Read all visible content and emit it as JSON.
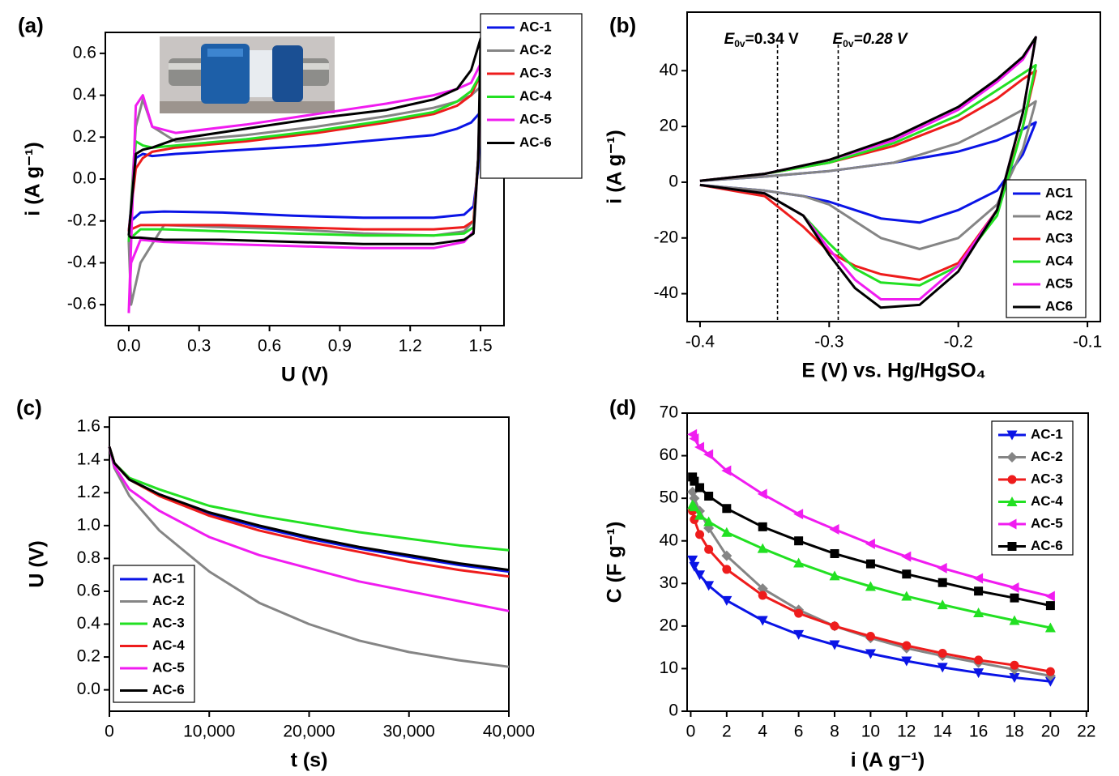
{
  "chart_data": [
    {
      "type": "line",
      "label": "(a)",
      "xlabel": "U (V)",
      "ylabel": "i (A g⁻¹)",
      "xlim": [
        -0.1,
        1.6
      ],
      "ylim": [
        -0.7,
        0.7
      ],
      "xticks": [
        {
          "value": 0,
          "label": "0.0"
        },
        0.3,
        0.6,
        0.9,
        1.2,
        1.5
      ],
      "yticks": [
        -0.6,
        -0.4,
        -0.2,
        {
          "value": 0,
          "label": "0.0"
        },
        0.2,
        0.4,
        0.6
      ],
      "x": [
        0,
        0.03,
        0.06,
        0.1,
        0.2,
        0.5,
        0.8,
        1.1,
        1.3,
        1.4,
        1.46,
        1.5,
        1.49,
        1.47,
        1.43,
        1.3,
        1.0,
        0.7,
        0.4,
        0.15,
        0.05,
        0.01,
        0
      ],
      "series": [
        {
          "name": "AC-1",
          "color": "#0a14e6",
          "values": [
            -0.25,
            0.1,
            0.12,
            0.11,
            0.12,
            0.14,
            0.16,
            0.19,
            0.21,
            0.24,
            0.27,
            0.32,
            0.05,
            -0.13,
            -0.17,
            -0.185,
            -0.185,
            -0.175,
            -0.16,
            -0.155,
            -0.16,
            -0.2,
            -0.25
          ]
        },
        {
          "name": "AC-2",
          "color": "#858585",
          "values": [
            -0.3,
            0.25,
            0.38,
            0.25,
            0.18,
            0.21,
            0.25,
            0.3,
            0.34,
            0.37,
            0.4,
            0.44,
            0.1,
            -0.2,
            -0.25,
            -0.27,
            -0.26,
            -0.24,
            -0.23,
            -0.22,
            -0.4,
            -0.6,
            -0.3
          ]
        },
        {
          "name": "AC-3",
          "color": "#ee1c1c",
          "values": [
            -0.25,
            0.05,
            0.1,
            0.13,
            0.15,
            0.18,
            0.22,
            0.27,
            0.31,
            0.35,
            0.4,
            0.5,
            0.1,
            -0.2,
            -0.23,
            -0.24,
            -0.24,
            -0.23,
            -0.22,
            -0.22,
            -0.22,
            -0.24,
            -0.25
          ]
        },
        {
          "name": "AC-4",
          "color": "#22e022",
          "values": [
            -0.3,
            0.18,
            0.16,
            0.15,
            0.16,
            0.19,
            0.23,
            0.28,
            0.32,
            0.37,
            0.42,
            0.5,
            0.1,
            -0.23,
            -0.26,
            -0.27,
            -0.27,
            -0.26,
            -0.25,
            -0.24,
            -0.24,
            -0.28,
            -0.3
          ]
        },
        {
          "name": "AC-5",
          "color": "#f01cf0",
          "values": [
            -0.64,
            0.35,
            0.4,
            0.25,
            0.22,
            0.26,
            0.31,
            0.36,
            0.4,
            0.43,
            0.46,
            0.55,
            0.1,
            -0.25,
            -0.3,
            -0.33,
            -0.33,
            -0.32,
            -0.31,
            -0.3,
            -0.29,
            -0.4,
            -0.64
          ]
        },
        {
          "name": "AC-6",
          "color": "#000000",
          "values": [
            -0.27,
            0.12,
            0.14,
            0.15,
            0.19,
            0.24,
            0.29,
            0.33,
            0.38,
            0.43,
            0.52,
            0.67,
            0.1,
            -0.26,
            -0.29,
            -0.31,
            -0.31,
            -0.3,
            -0.29,
            -0.29,
            -0.28,
            -0.28,
            -0.27
          ]
        }
      ]
    },
    {
      "type": "line",
      "label": "(b)",
      "xlabel": "E (V) vs. Hg/HgSO₄",
      "ylabel": "i (A g⁻¹)",
      "xlim": [
        -0.41,
        -0.09
      ],
      "ylim": [
        -50,
        61
      ],
      "xticks": [
        -0.4,
        -0.3,
        -0.2,
        -0.1
      ],
      "yticks": [
        -40,
        -20,
        0,
        20,
        40
      ],
      "annotations": [
        {
          "x": -0.34,
          "label": "E",
          "sub": "0v",
          "text": "=0.34 V"
        },
        {
          "x": -0.293,
          "label": "E",
          "sub": "0v",
          "text": "=0.28 V"
        }
      ],
      "x": [
        -0.4,
        -0.35,
        -0.3,
        -0.25,
        -0.2,
        -0.17,
        -0.15,
        -0.14,
        -0.15,
        -0.17,
        -0.2,
        -0.23,
        -0.26,
        -0.28,
        -0.3,
        -0.32,
        -0.35,
        -0.4
      ],
      "series": [
        {
          "name": "AC1",
          "color": "#0a14e6",
          "values": [
            0.5,
            2,
            4,
            7,
            11,
            15,
            19,
            21.5,
            10,
            -3,
            -10,
            -14.5,
            -13,
            -10,
            -7,
            -5,
            -3,
            -1
          ]
        },
        {
          "name": "AC2",
          "color": "#858585",
          "values": [
            0.5,
            2,
            4,
            7,
            14,
            21,
            26,
            29,
            12,
            -8,
            -20,
            -24,
            -20,
            -14,
            -8,
            -5,
            -3,
            -1
          ]
        },
        {
          "name": "AC3",
          "color": "#ee1c1c",
          "values": [
            0.5,
            3,
            7,
            13,
            22,
            30,
            37,
            40,
            20,
            -10,
            -29,
            -35,
            -33,
            -30,
            -25,
            -16,
            -5,
            -1
          ]
        },
        {
          "name": "AC4",
          "color": "#22e022",
          "values": [
            0.5,
            3,
            7,
            14,
            24,
            33,
            39,
            42,
            20,
            -12,
            -30,
            -37,
            -36,
            -31,
            -22,
            -12,
            -4,
            -1
          ]
        },
        {
          "name": "AC5",
          "color": "#f01cf0",
          "values": [
            0.5,
            3,
            8,
            15,
            26,
            36,
            44,
            52,
            25,
            -10,
            -30,
            -42,
            -42,
            -35,
            -24,
            -12,
            -4,
            -1
          ]
        },
        {
          "name": "AC6",
          "color": "#000000",
          "values": [
            0.5,
            3,
            8,
            16,
            27,
            37,
            45,
            52,
            25,
            -10,
            -32,
            -44,
            -45,
            -38,
            -26,
            -12,
            -4,
            -1
          ]
        }
      ]
    },
    {
      "type": "line",
      "label": "(c)",
      "xlabel": "t (s)",
      "ylabel": "U (V)",
      "xlim": [
        0,
        40000
      ],
      "ylim": [
        -0.13,
        1.66
      ],
      "xticks": [
        0,
        {
          "value": 10000,
          "label": "10,000"
        },
        {
          "value": 20000,
          "label": "20,000"
        },
        {
          "value": 30000,
          "label": "30,000"
        },
        {
          "value": 40000,
          "label": "40,000"
        }
      ],
      "yticks": [
        {
          "value": 0,
          "label": "0.0"
        },
        0.2,
        0.4,
        0.6,
        0.8,
        {
          "value": 1,
          "label": "1.0"
        },
        1.2,
        1.4,
        1.6
      ],
      "x": [
        0,
        500,
        2000,
        5000,
        10000,
        15000,
        20000,
        25000,
        30000,
        35000,
        40000
      ],
      "series": [
        {
          "name": "AC-1",
          "color": "#0a14e6",
          "values": [
            1.48,
            1.38,
            1.28,
            1.19,
            1.07,
            0.99,
            0.92,
            0.86,
            0.81,
            0.76,
            0.72
          ]
        },
        {
          "name": "AC-2",
          "color": "#858585",
          "values": [
            1.48,
            1.35,
            1.18,
            0.97,
            0.72,
            0.53,
            0.4,
            0.3,
            0.23,
            0.18,
            0.14
          ]
        },
        {
          "name": "AC-3",
          "color": "#22e022",
          "values": [
            1.48,
            1.38,
            1.29,
            1.22,
            1.12,
            1.06,
            1.01,
            0.96,
            0.92,
            0.88,
            0.85
          ]
        },
        {
          "name": "AC-4",
          "color": "#ee1c1c",
          "values": [
            1.48,
            1.38,
            1.28,
            1.18,
            1.06,
            0.97,
            0.9,
            0.84,
            0.78,
            0.73,
            0.69
          ]
        },
        {
          "name": "AC-5",
          "color": "#f01cf0",
          "values": [
            1.48,
            1.36,
            1.22,
            1.09,
            0.93,
            0.82,
            0.74,
            0.66,
            0.6,
            0.54,
            0.48
          ]
        },
        {
          "name": "AC-6",
          "color": "#000000",
          "values": [
            1.48,
            1.38,
            1.28,
            1.19,
            1.08,
            1.0,
            0.93,
            0.87,
            0.82,
            0.77,
            0.73
          ]
        }
      ]
    },
    {
      "type": "line",
      "label": "(d)",
      "xlabel": "i (A g⁻¹)",
      "ylabel": "C (F g⁻¹)",
      "xlim": [
        -0.2,
        22.1
      ],
      "ylim": [
        0,
        70
      ],
      "xticks": [
        0,
        2,
        4,
        6,
        8,
        10,
        12,
        14,
        16,
        18,
        20,
        22
      ],
      "yticks": [
        0,
        10,
        20,
        30,
        40,
        50,
        60,
        70
      ],
      "x": [
        0.1,
        0.2,
        0.5,
        1,
        2,
        4,
        6,
        8,
        10,
        12,
        14,
        16,
        18,
        20
      ],
      "series": [
        {
          "name": "AC-1",
          "color": "#0a14e6",
          "marker": "triangle-down",
          "values": [
            35.5,
            34,
            32,
            29.5,
            26,
            21.3,
            18,
            15.6,
            13.5,
            11.8,
            10.3,
            9,
            7.9,
            7
          ]
        },
        {
          "name": "AC-2",
          "color": "#858585",
          "marker": "diamond",
          "values": [
            51.5,
            50,
            47,
            43,
            36.5,
            28.8,
            23.8,
            20,
            17.2,
            14.8,
            13,
            11.4,
            9.8,
            8.3
          ]
        },
        {
          "name": "AC-3",
          "color": "#ee1c1c",
          "marker": "circle",
          "values": [
            47,
            45,
            41.5,
            38,
            33.3,
            27.2,
            23,
            20,
            17.6,
            15.4,
            13.6,
            12,
            10.8,
            9.3
          ]
        },
        {
          "name": "AC-4",
          "color": "#22e022",
          "marker": "triangle-up",
          "values": [
            48.5,
            48,
            46,
            44.5,
            42,
            38.2,
            34.8,
            31.8,
            29.3,
            27,
            25,
            23.1,
            21.3,
            19.6
          ]
        },
        {
          "name": "AC-5",
          "color": "#f01cf0",
          "marker": "triangle-left",
          "values": [
            65,
            64,
            62,
            60.3,
            56.5,
            51,
            46.3,
            42.7,
            39.3,
            36.3,
            33.6,
            31.2,
            29,
            27
          ]
        },
        {
          "name": "AC-6",
          "color": "#000000",
          "marker": "square",
          "values": [
            55,
            54,
            52.5,
            50.5,
            47.6,
            43.3,
            40,
            37,
            34.6,
            32.2,
            30.2,
            28.2,
            26.6,
            24.8
          ]
        }
      ]
    }
  ]
}
